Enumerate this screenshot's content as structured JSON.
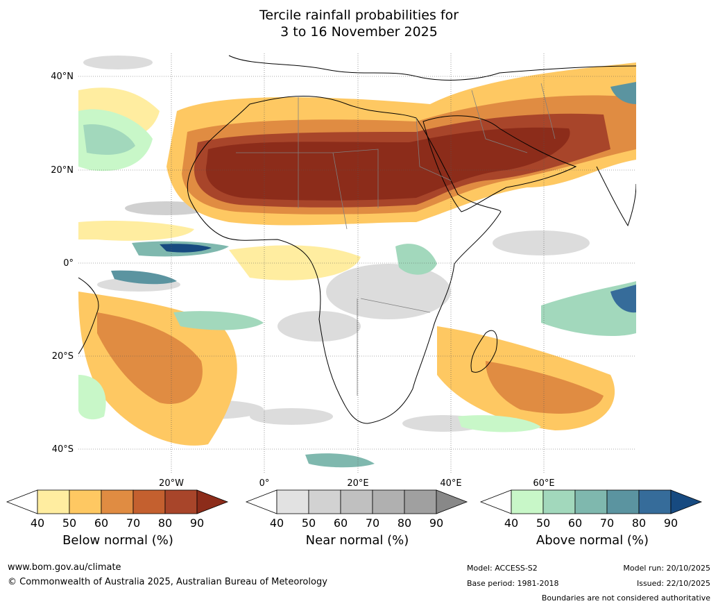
{
  "title": {
    "line1": "Tercile rainfall probabilities for",
    "line2": "3 to 16 November 2025"
  },
  "map": {
    "lat_labels": [
      "40°N",
      "20°N",
      "0°",
      "20°S",
      "40°S"
    ],
    "lon_labels": [
      "20°W",
      "0°",
      "20°E",
      "40°E",
      "60°E"
    ]
  },
  "legend": {
    "below": {
      "title": "Below normal (%)",
      "ticks": [
        "40",
        "50",
        "60",
        "70",
        "80",
        "90"
      ],
      "colors": [
        "#ffeda0",
        "#fec862",
        "#e08c42",
        "#c4602f",
        "#a8452a",
        "#8c2c1a"
      ]
    },
    "near": {
      "title": "Near normal (%)",
      "ticks": [
        "40",
        "50",
        "60",
        "70",
        "80",
        "90"
      ],
      "colors": [
        "#e2e2e2",
        "#d2d2d2",
        "#c0c0c0",
        "#b0b0b0",
        "#a0a0a0",
        "#888888"
      ]
    },
    "above": {
      "title": "Above normal (%)",
      "ticks": [
        "40",
        "50",
        "60",
        "70",
        "80",
        "90"
      ],
      "colors": [
        "#c8f7c8",
        "#a2d8bc",
        "#7fb8ae",
        "#5b94a0",
        "#366c9a",
        "#174a80"
      ]
    }
  },
  "footer": {
    "url": "www.bom.gov.au/climate",
    "copyright": "© Commonwealth of Australia 2025, Australian Bureau of Meteorology",
    "model": "Model: ACCESS-S2",
    "base_period": "Base period: 1981-2018",
    "model_run": "Model run: 20/10/2025",
    "issued": "Issued: 22/10/2025",
    "disclaimer": "Boundaries are not considered authoritative"
  },
  "colors": {
    "land_outline": "#000000",
    "border": "#808080",
    "grid": "#555555"
  }
}
